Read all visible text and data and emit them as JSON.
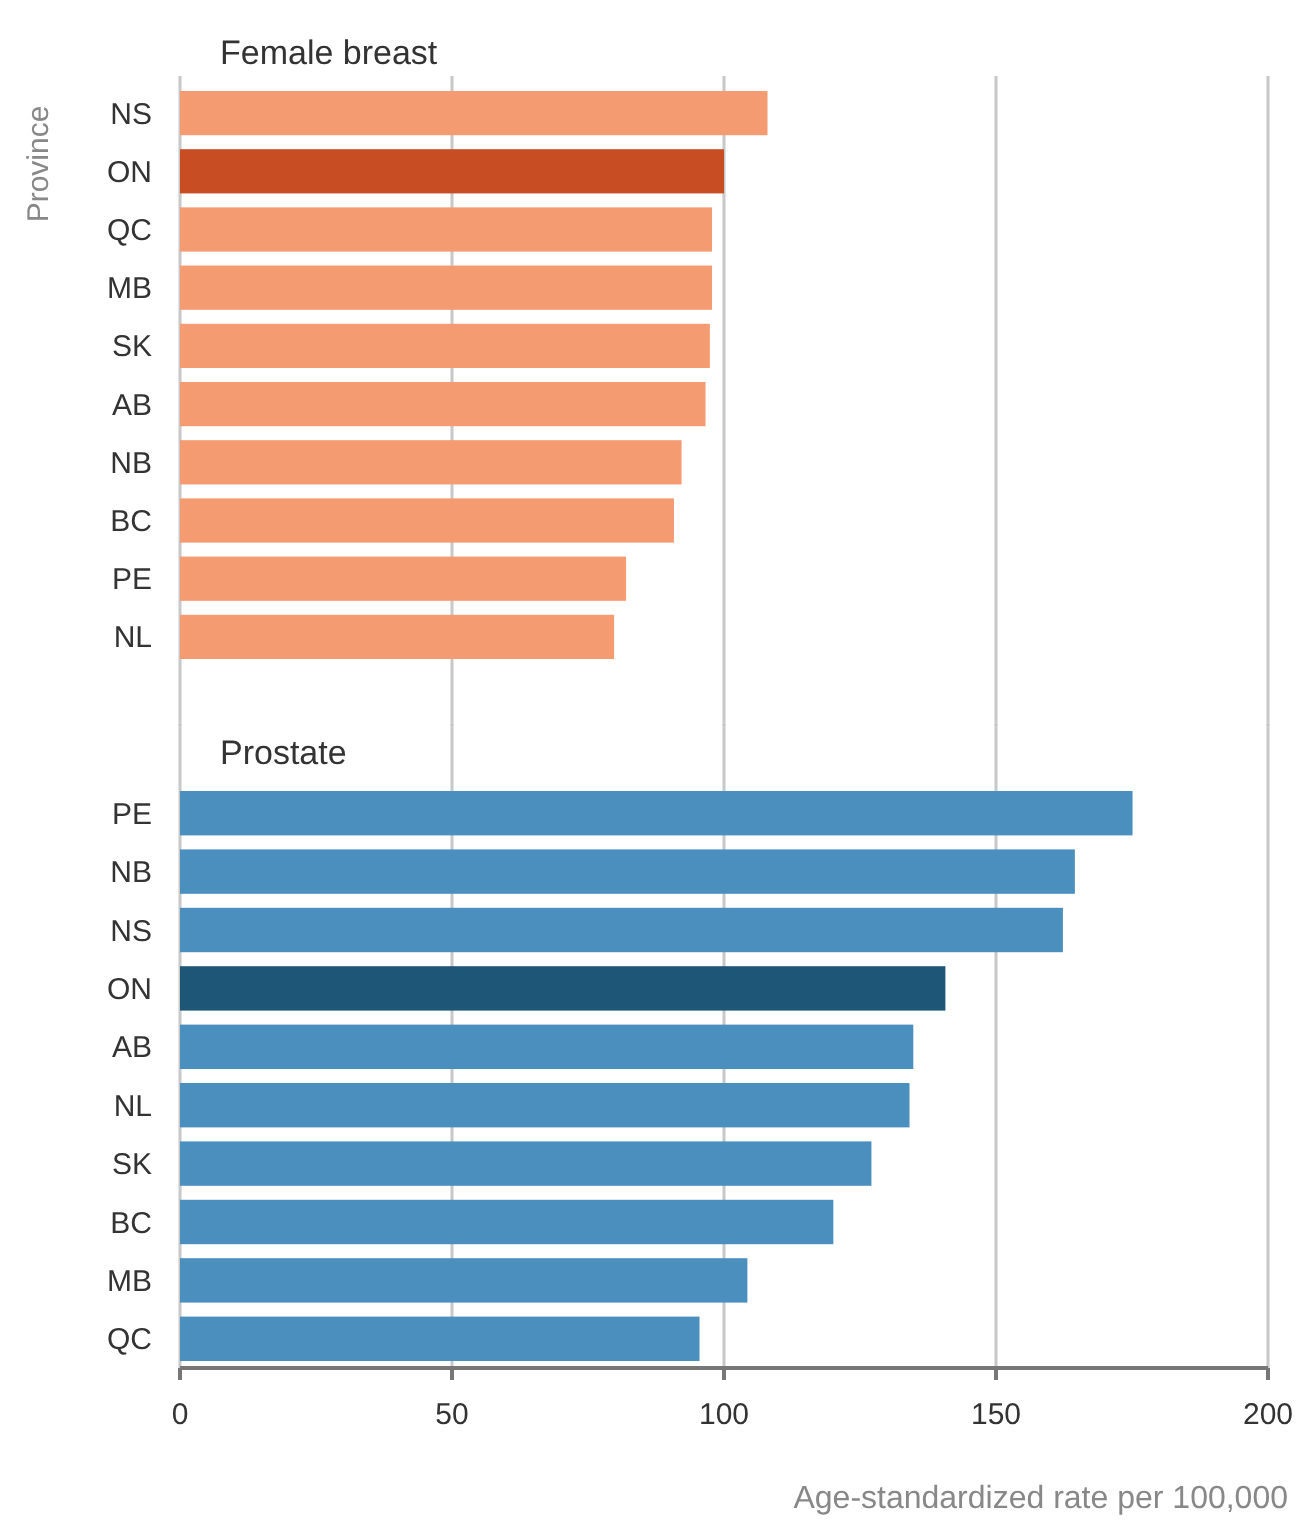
{
  "chart_data": [
    {
      "type": "bar",
      "orientation": "horizontal",
      "title": "Female breast",
      "ylabel": "Province",
      "categories": [
        "NS",
        "ON",
        "QC",
        "MB",
        "SK",
        "AB",
        "NB",
        "BC",
        "PE",
        "NL"
      ],
      "values": [
        108,
        100,
        97.8,
        97.8,
        97.4,
        96.6,
        92.2,
        90.8,
        82,
        79.8
      ],
      "colors": [
        "#f49b72",
        "#c84d22",
        "#f49b72",
        "#f49b72",
        "#f49b72",
        "#f49b72",
        "#f49b72",
        "#f49b72",
        "#f49b72",
        "#f49b72"
      ],
      "xlim": [
        0,
        200
      ],
      "xticks": [
        0,
        50,
        100,
        150,
        200
      ],
      "grid": "x",
      "tick_labels": "y"
    },
    {
      "type": "bar",
      "orientation": "horizontal",
      "title": "Prostate",
      "xlabel": "Age-standardized rate per 100,000",
      "categories": [
        "PE",
        "NB",
        "NS",
        "ON",
        "AB",
        "NL",
        "SK",
        "BC",
        "MB",
        "QC"
      ],
      "values": [
        175.1,
        164.5,
        162.3,
        140.7,
        134.8,
        134.1,
        127.1,
        120.1,
        104.3,
        95.5
      ],
      "colors": [
        "#4b8fbf",
        "#4b8fbf",
        "#4b8fbf",
        "#1e5677",
        "#4b8fbf",
        "#4b8fbf",
        "#4b8fbf",
        "#4b8fbf",
        "#4b8fbf",
        "#4b8fbf"
      ],
      "xlim": [
        0,
        200
      ],
      "xticks": [
        0,
        50,
        100,
        150,
        200
      ],
      "grid": "x"
    }
  ]
}
